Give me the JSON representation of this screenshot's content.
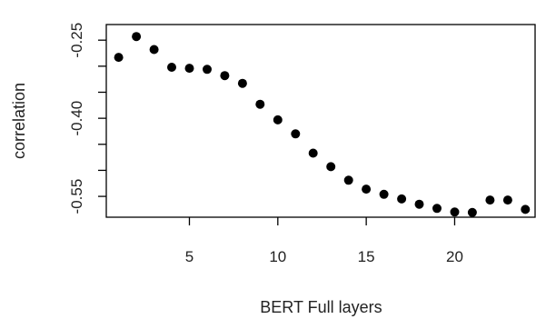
{
  "chart_data": {
    "type": "scatter",
    "title": "",
    "xlabel": "BERT Full layers",
    "ylabel": "correlation",
    "xlim": [
      0.3,
      24.6
    ],
    "ylim": [
      -0.59,
      -0.22
    ],
    "x_ticks": [
      5,
      10,
      15,
      20
    ],
    "x_tick_labels": [
      "5",
      "10",
      "15",
      "20"
    ],
    "y_ticks": [
      -0.25,
      -0.3,
      -0.35,
      -0.4,
      -0.45,
      -0.5,
      -0.55
    ],
    "y_tick_labels": [
      "-0.25",
      "",
      "",
      "-0.40",
      "",
      "",
      "-0.55"
    ],
    "grid": false,
    "marker_color": "#000000",
    "series": [
      {
        "x": [
          1,
          2,
          3,
          4,
          5,
          6,
          7,
          8,
          9,
          10,
          11,
          12,
          13,
          14,
          15,
          16,
          17,
          18,
          19,
          20,
          21,
          22,
          23,
          24
        ],
        "y": [
          -0.283,
          -0.243,
          -0.268,
          -0.302,
          -0.304,
          -0.306,
          -0.318,
          -0.333,
          -0.373,
          -0.403,
          -0.43,
          -0.467,
          -0.493,
          -0.519,
          -0.536,
          -0.546,
          -0.555,
          -0.565,
          -0.573,
          -0.58,
          -0.581,
          -0.557,
          -0.557,
          -0.575
        ]
      }
    ]
  }
}
